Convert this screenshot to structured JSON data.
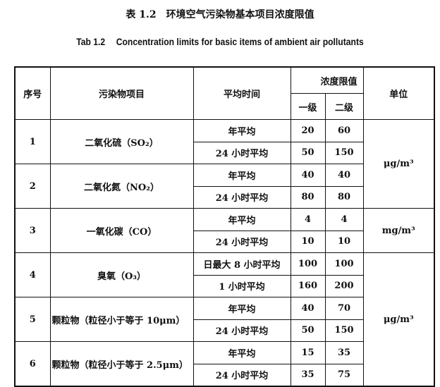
{
  "title_cn": "表 1.2　环境空气污染物基本项目浓度限值",
  "title_en": "Tab 1.2　 Concentration limits for basic items of ambient air pollutants",
  "headers": {
    "no": "序号",
    "item": "污染物项目",
    "period": "平均时间",
    "limit": "浓度限值",
    "grade1": "一级",
    "grade2": "二级",
    "unit": "单位"
  },
  "rows": [
    {
      "no": "1",
      "item": "二氧化硫（SO₂）",
      "sub": [
        {
          "period": "年平均",
          "g1": "20",
          "g2": "60"
        },
        {
          "period": "24 小时平均",
          "g1": "50",
          "g2": "150"
        }
      ]
    },
    {
      "no": "2",
      "item": "二氧化氮（NO₂）",
      "sub": [
        {
          "period": "年平均",
          "g1": "40",
          "g2": "40"
        },
        {
          "period": "24 小时平均",
          "g1": "80",
          "g2": "80"
        }
      ]
    },
    {
      "no": "3",
      "item": "一氧化碳（CO）",
      "sub": [
        {
          "period": "年平均",
          "g1": "4",
          "g2": "4"
        },
        {
          "period": "24 小时平均",
          "g1": "10",
          "g2": "10"
        }
      ]
    },
    {
      "no": "4",
      "item": "臭氧（O₃）",
      "sub": [
        {
          "period": "日最大 8 小时平均",
          "g1": "100",
          "g2": "100"
        },
        {
          "period": "1 小时平均",
          "g1": "160",
          "g2": "200"
        }
      ]
    },
    {
      "no": "5",
      "item": "颗粒物（粒径小于等于 10μm）",
      "sub": [
        {
          "period": "年平均",
          "g1": "40",
          "g2": "70"
        },
        {
          "period": "24 小时平均",
          "g1": "50",
          "g2": "150"
        }
      ]
    },
    {
      "no": "6",
      "item": "颗粒物（粒径小于等于 2.5μm）",
      "sub": [
        {
          "period": "年平均",
          "g1": "15",
          "g2": "35"
        },
        {
          "period": "24 小时平均",
          "g1": "35",
          "g2": "75"
        }
      ]
    }
  ],
  "units": [
    "μg/m³",
    "mg/m³",
    "μg/m³"
  ]
}
